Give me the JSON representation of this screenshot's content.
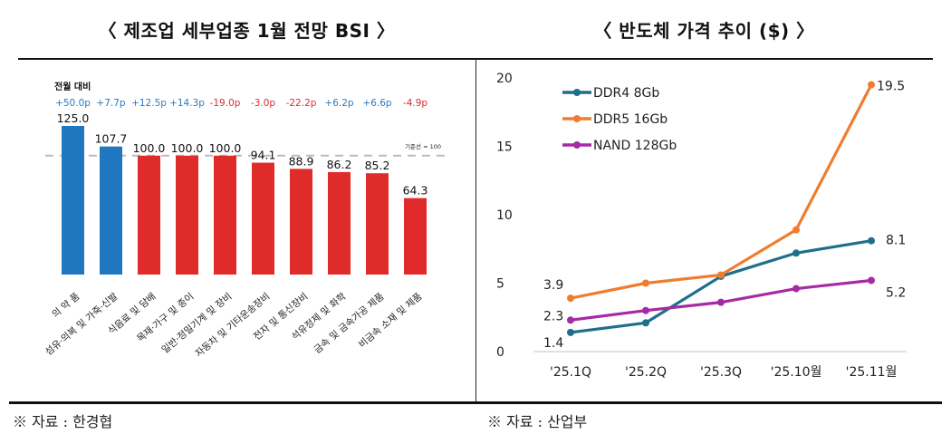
{
  "titles": {
    "left": "〈 제조업 세부업종 1월 전망 BSI 〉",
    "right": "〈 반도체 가격 추이 ($) 〉"
  },
  "sources": {
    "left": "※ 자료 : 한경협",
    "right": "※ 자료 : 산업부"
  },
  "chart_data": [
    {
      "type": "bar",
      "title": "제조업 세부업종 1월 전망 BSI",
      "categories": [
        "의 약 품",
        "섬유·의복 및 가죽·신발",
        "식음료 및 담배",
        "목재·가구 및 종이",
        "일반·정밀기계 및 장비",
        "자동차 및 기타운송장비",
        "전자 및 통신장비",
        "석유정제 및 화학",
        "금속 및 금속가공 제품",
        "비금속 소재 및 제품"
      ],
      "values": [
        125.0,
        107.7,
        100.0,
        100.0,
        100.0,
        94.1,
        88.9,
        86.2,
        85.2,
        64.3
      ],
      "value_labels": [
        "125.0",
        "107.7",
        "100.0",
        "100.0",
        "100.0",
        "94.1",
        "88.9",
        "86.2",
        "85.2",
        "64.3"
      ],
      "delta_title": "전월 대비",
      "deltas": [
        "+50.0p",
        "+7.7p",
        "+12.5p",
        "+14.3p",
        "-19.0p",
        "-3.0p",
        "-22.2p",
        "+6.2p",
        "+6.6p",
        "-4.9p"
      ],
      "reference_line": {
        "value": 100,
        "label": "기준선 = 100"
      },
      "colors": {
        "above": "#1f77c0",
        "below": "#e02b2b",
        "delta_pos": "#2a7bbf",
        "delta_neg": "#e02b2b",
        "refline": "#bbbbbb"
      },
      "ylim": [
        0,
        130
      ],
      "xlabel": "",
      "ylabel": "",
      "grid": false
    },
    {
      "type": "line",
      "title": "반도체 가격 추이 ($)",
      "x": [
        "'25.1Q",
        "'25.2Q",
        "'25.3Q",
        "'25.10월",
        "'25.11월"
      ],
      "series": [
        {
          "name": "DDR4 8Gb",
          "color": "#1f6f8b",
          "values": [
            1.4,
            2.1,
            5.5,
            7.2,
            8.1
          ]
        },
        {
          "name": "DDR5 16Gb",
          "color": "#f07c2e",
          "values": [
            3.9,
            5.0,
            5.6,
            8.9,
            19.5
          ]
        },
        {
          "name": "NAND 128Gb",
          "color": "#a52aa5",
          "values": [
            2.3,
            3.0,
            3.6,
            4.6,
            5.2
          ]
        }
      ],
      "data_labels": [
        {
          "series": 0,
          "index": 0,
          "text": "1.4"
        },
        {
          "series": 0,
          "index": 4,
          "text": "8.1"
        },
        {
          "series": 1,
          "index": 0,
          "text": "3.9"
        },
        {
          "series": 1,
          "index": 4,
          "text": "19.5"
        },
        {
          "series": 2,
          "index": 0,
          "text": "2.3"
        },
        {
          "series": 2,
          "index": 4,
          "text": "5.2"
        }
      ],
      "yticks": [
        0,
        5,
        10,
        15,
        20
      ],
      "ylim": [
        0,
        20
      ],
      "legend": "top-left",
      "xlabel": "",
      "ylabel": "",
      "grid": false
    }
  ]
}
